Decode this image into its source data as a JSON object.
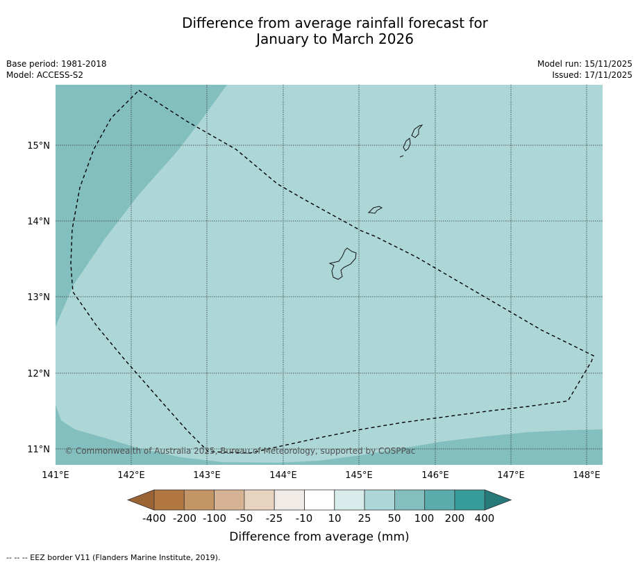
{
  "title_line1": "Difference from average rainfall forecast for",
  "title_line2": "January to March 2026",
  "meta_left": {
    "base_period": "Base period: 1981-2018",
    "model": "Model: ACCESS-S2"
  },
  "meta_right": {
    "model_run": "Model run: 15/11/2025",
    "issued": "Issued: 17/11/2025"
  },
  "map": {
    "lon_range": [
      141.0,
      148.2
    ],
    "lat_range": [
      10.8,
      15.8
    ],
    "lon_ticks": [
      "141°E",
      "142°E",
      "143°E",
      "144°E",
      "145°E",
      "146°E",
      "147°E",
      "148°E"
    ],
    "lat_ticks": [
      "15°N",
      "14°N",
      "13°N",
      "12°N",
      "11°N"
    ],
    "copyright": "© Commonwealth of Australia 2025, Bureau of Meteorology, supported by COSPPac"
  },
  "colorbar": {
    "labels": [
      "-400",
      "-200",
      "-100",
      "-50",
      "-25",
      "-10",
      "10",
      "25",
      "50",
      "100",
      "200",
      "400"
    ],
    "colors": [
      "#9a6434",
      "#b07840",
      "#c39466",
      "#d6b394",
      "#e8d3c1",
      "#f0ebe7",
      "#ffffff",
      "#d7ecea",
      "#add6d6",
      "#84bfbf",
      "#5badad",
      "#379b9b",
      "#277878"
    ],
    "axis_label": "Difference from average (mm)"
  },
  "footer": "--  --  -- EEZ border V11 (Flanders Marine Institute, 2019)."
}
